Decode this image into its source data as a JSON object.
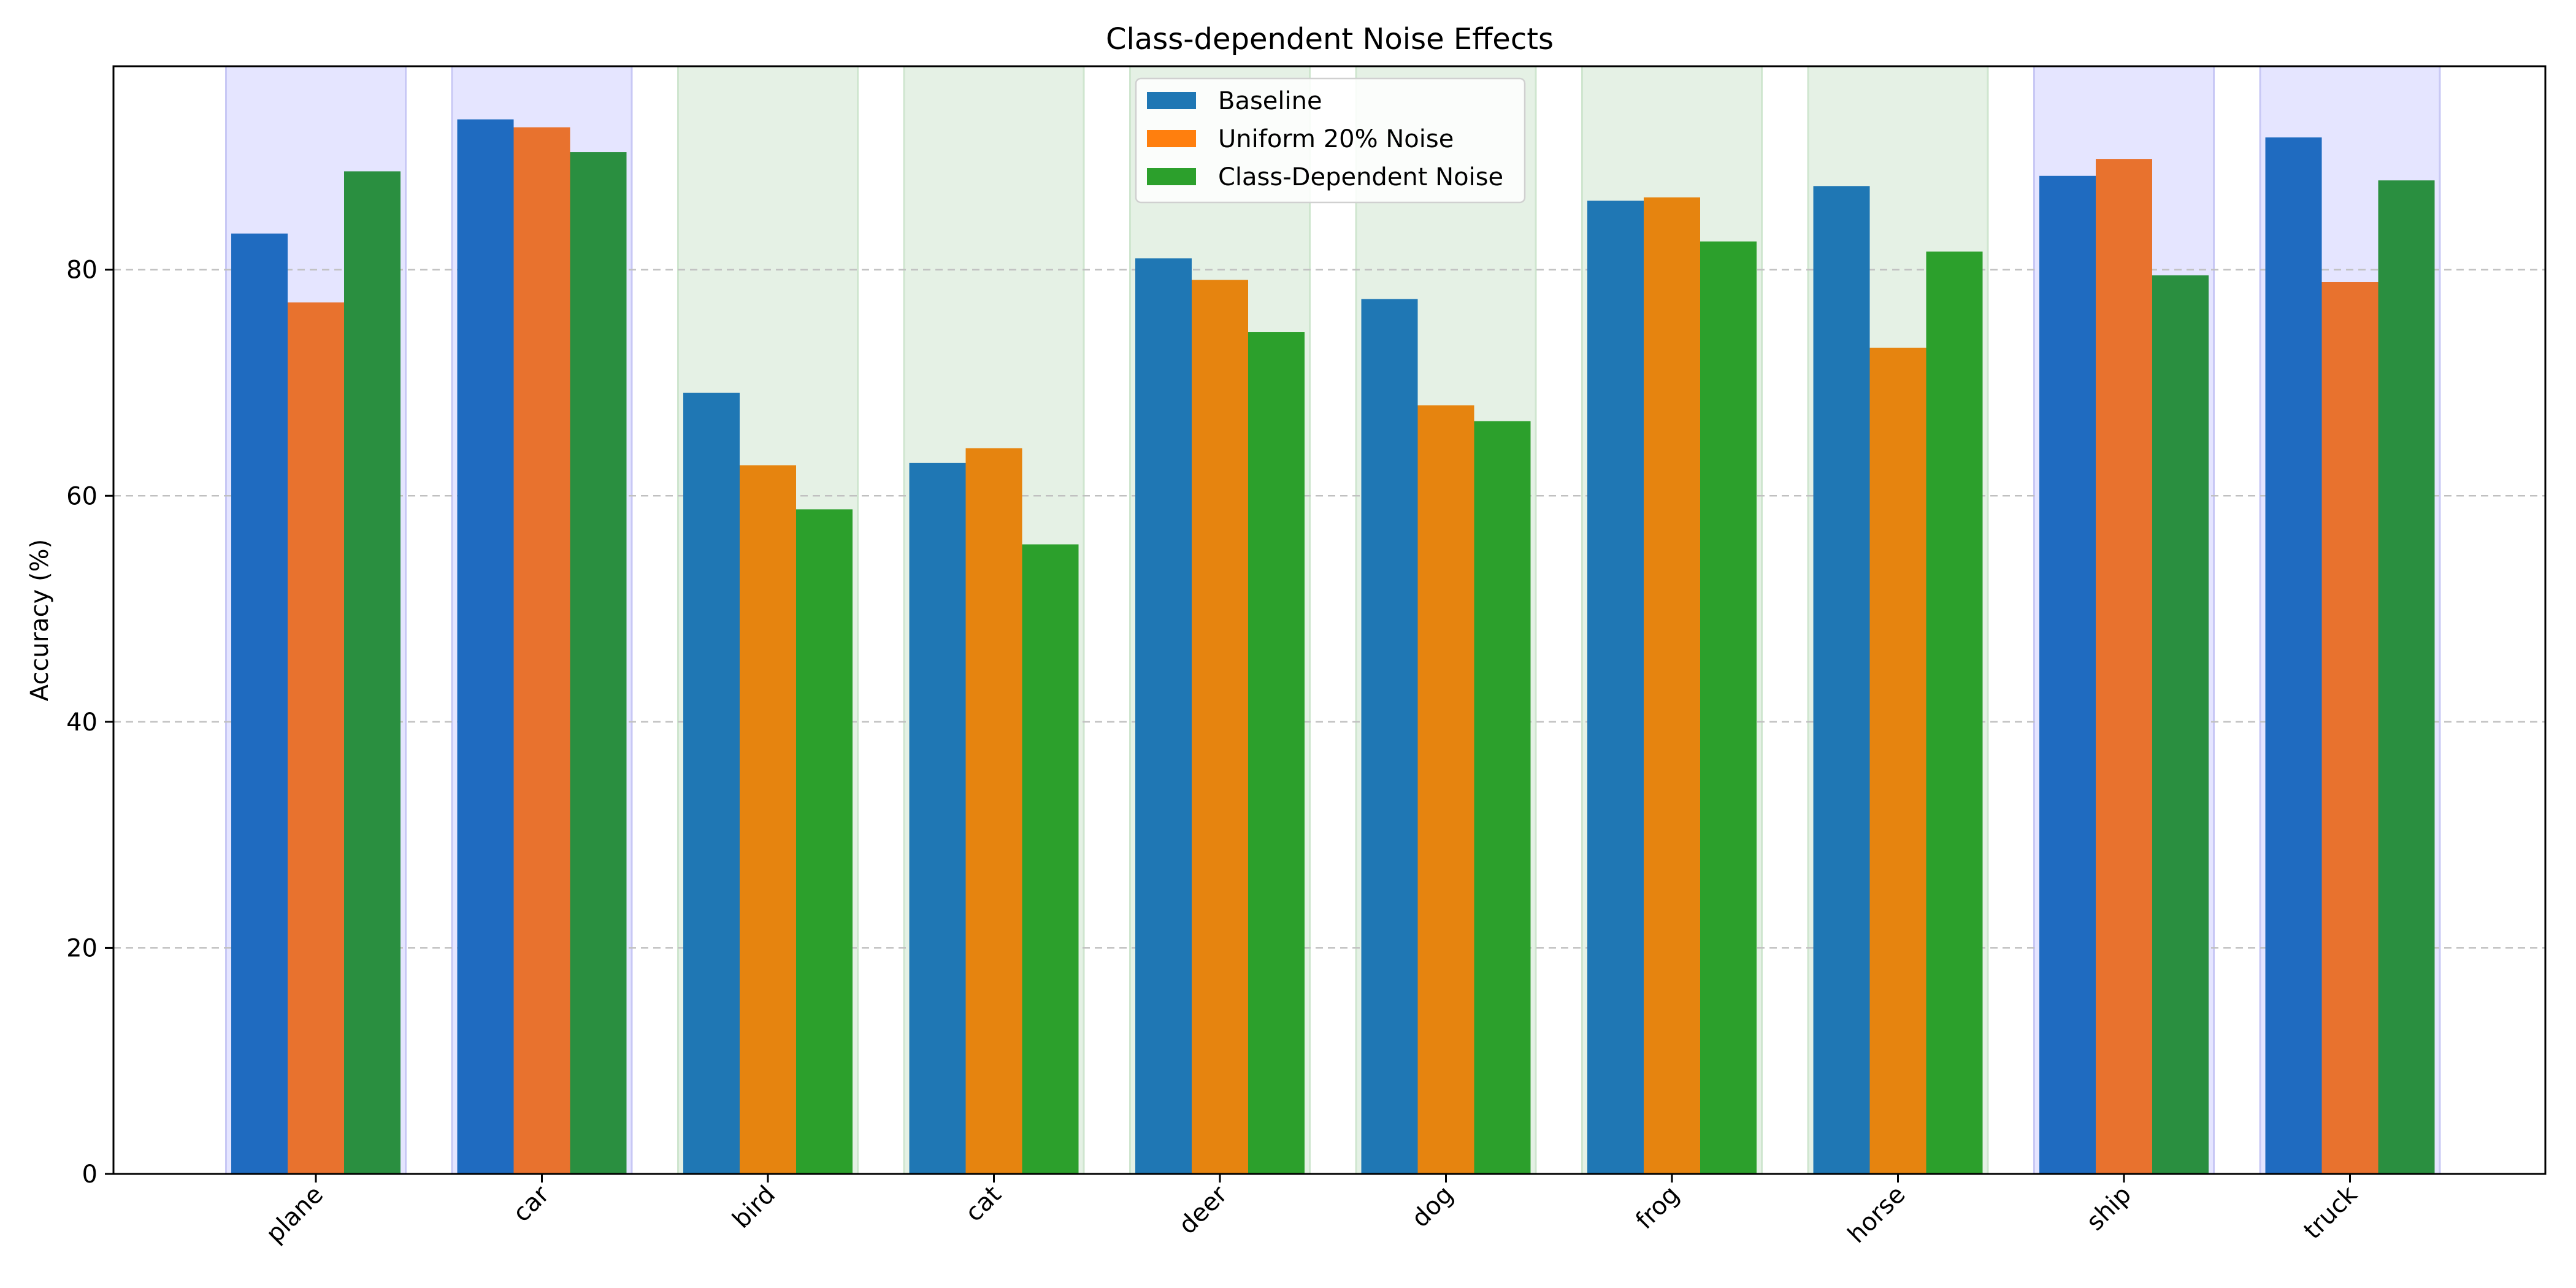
{
  "chart_data": {
    "type": "bar",
    "title": "Class-dependent Noise Effects",
    "xlabel": "",
    "ylabel": "Accuracy (%)",
    "ylim": [
      0,
      98
    ],
    "yticks": [
      0,
      20,
      40,
      60,
      80
    ],
    "grid": "y-dashed",
    "legend_placement": "top-center",
    "categories": [
      "plane",
      "car",
      "bird",
      "cat",
      "deer",
      "dog",
      "frog",
      "horse",
      "ship",
      "truck"
    ],
    "category_groups": [
      "vehicle",
      "vehicle",
      "animal",
      "animal",
      "animal",
      "animal",
      "animal",
      "animal",
      "vehicle",
      "vehicle"
    ],
    "series": [
      {
        "name": "Baseline",
        "color": "#1f77b4",
        "vehicle_color": "#1f6bc0",
        "values": [
          83.2,
          93.3,
          69.1,
          62.9,
          81.0,
          77.4,
          86.1,
          87.4,
          88.3,
          91.7
        ]
      },
      {
        "name": "Uniform 20% Noise",
        "color": "#ff7f0e",
        "legend_color": "#ff7f0e",
        "bar_color": "#e6840f",
        "vehicle_color": "#e8722e",
        "values": [
          77.1,
          92.6,
          62.7,
          64.2,
          79.1,
          68.0,
          86.4,
          73.1,
          89.8,
          78.9
        ]
      },
      {
        "name": "Class-Dependent Noise",
        "color": "#2ca02c",
        "vehicle_color": "#2a8f40",
        "values": [
          88.7,
          90.4,
          58.8,
          55.7,
          74.5,
          66.6,
          82.5,
          81.6,
          79.5,
          87.9
        ]
      }
    ],
    "background_bands": {
      "vehicle": "#e5e5ff",
      "animal": "#e5f1e5"
    },
    "colors": {
      "grid": "#c0c0c0",
      "axis": "#000000"
    }
  }
}
